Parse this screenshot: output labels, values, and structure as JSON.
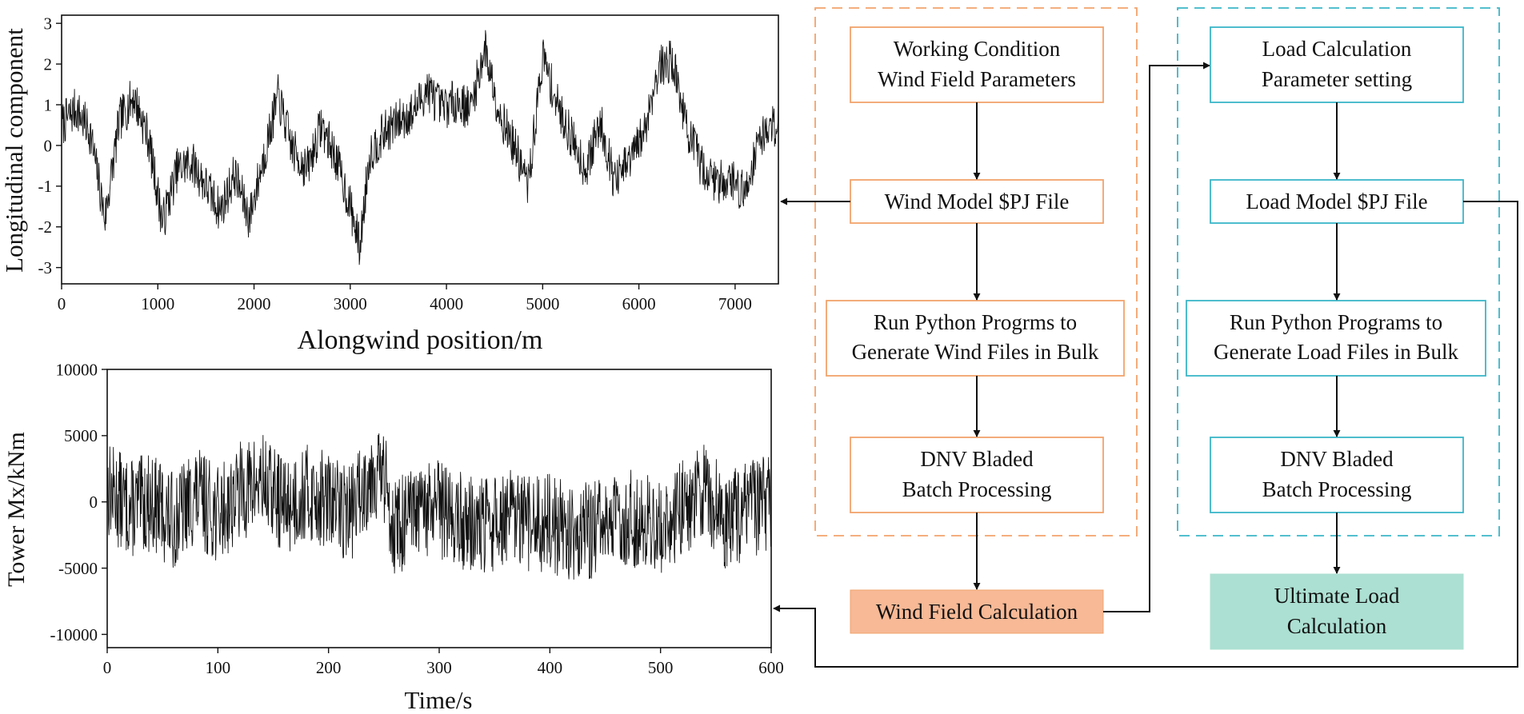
{
  "colors": {
    "wind_group": "#f2a36c",
    "load_group": "#3bb6c8",
    "wind_result_fill": "#f7b996",
    "load_result_fill": "#ace0d2",
    "trace": "#111111"
  },
  "wind_flow": {
    "box1": {
      "line1": "Working Condition",
      "line2": "Wind Field Parameters"
    },
    "box2": {
      "line1": "Wind Model $PJ File"
    },
    "box3": {
      "line1": "Run Python Progrms to",
      "line2": "Generate Wind Files in Bulk"
    },
    "box4": {
      "line1": "DNV Bladed",
      "line2": "Batch Processing"
    },
    "result": {
      "line1": "Wind Field Calculation"
    }
  },
  "load_flow": {
    "box1": {
      "line1": "Load Calculation",
      "line2": "Parameter setting"
    },
    "box2": {
      "line1": "Load Model $PJ File"
    },
    "box3": {
      "line1": "Run Python Programs to",
      "line2": "Generate Load Files in Bulk"
    },
    "box4": {
      "line1": "DNV Bladed",
      "line2": "Batch Processing"
    },
    "result": {
      "line1": "Ultimate Load",
      "line2": "Calculation"
    }
  },
  "chart_data": [
    {
      "type": "line",
      "title": "",
      "xlabel": "Alongwind position/m",
      "ylabel": "Longitudinal component",
      "xlim": [
        0,
        7450
      ],
      "ylim": [
        -3.4,
        3.2
      ],
      "x_ticks": [
        "0",
        "1000",
        "2000",
        "3000",
        "4000",
        "5000",
        "6000",
        "7000"
      ],
      "y_ticks": [
        "3",
        "2",
        "1",
        "0",
        "-1",
        "-2",
        "-3"
      ],
      "series": [
        {
          "name": "Longitudinal component",
          "x": [
            0,
            150,
            300,
            450,
            600,
            750,
            900,
            1050,
            1200,
            1350,
            1500,
            1650,
            1800,
            1950,
            2100,
            2250,
            2400,
            2550,
            2700,
            2850,
            3000,
            3100,
            3200,
            3350,
            3500,
            3650,
            3800,
            3950,
            4100,
            4250,
            4400,
            4550,
            4700,
            4850,
            5000,
            5150,
            5300,
            5450,
            5600,
            5750,
            5900,
            6050,
            6200,
            6350,
            6500,
            6650,
            6800,
            6950,
            7100,
            7250,
            7450
          ],
          "values": [
            0.5,
            0.9,
            0.3,
            -1.8,
            0.6,
            1.2,
            0.2,
            -1.9,
            -0.6,
            -0.4,
            -1.0,
            -1.6,
            -0.7,
            -1.8,
            -0.3,
            1.2,
            -0.1,
            -0.6,
            0.5,
            -0.3,
            -1.5,
            -2.5,
            -0.2,
            0.3,
            0.6,
            0.8,
            1.4,
            0.9,
            1.1,
            0.9,
            2.4,
            0.8,
            0.0,
            -1.0,
            2.2,
            1.0,
            0.2,
            -0.6,
            0.6,
            -0.9,
            -0.4,
            0.3,
            1.9,
            2.1,
            0.4,
            -0.5,
            -0.9,
            -0.8,
            -1.2,
            0.2,
            0.6
          ]
        }
      ]
    },
    {
      "type": "line",
      "title": "",
      "xlabel": "Time/s",
      "ylabel": "Tower Mx/kNm",
      "xlim": [
        0,
        600
      ],
      "ylim": [
        -11000,
        10000
      ],
      "x_ticks": [
        "0",
        "100",
        "200",
        "300",
        "400",
        "500",
        "600"
      ],
      "y_ticks": [
        "10000",
        "5000",
        "0",
        "-5000",
        "-10000"
      ],
      "series": [
        {
          "name": "Tower Mx",
          "x": [
            0,
            20,
            40,
            60,
            80,
            100,
            120,
            140,
            160,
            180,
            200,
            220,
            240,
            250,
            260,
            280,
            300,
            320,
            340,
            360,
            380,
            400,
            420,
            440,
            460,
            480,
            500,
            520,
            540,
            560,
            580,
            600
          ],
          "values": [
            1000,
            -500,
            0,
            -1500,
            500,
            -1000,
            800,
            1500,
            -300,
            600,
            0,
            -800,
            2500,
            1800,
            -2000,
            -1000,
            -500,
            -1500,
            -2000,
            -1200,
            -1800,
            -1500,
            -2500,
            -2000,
            -1500,
            -1200,
            -2000,
            -500,
            1000,
            -1500,
            -500,
            0
          ]
        }
      ]
    }
  ]
}
